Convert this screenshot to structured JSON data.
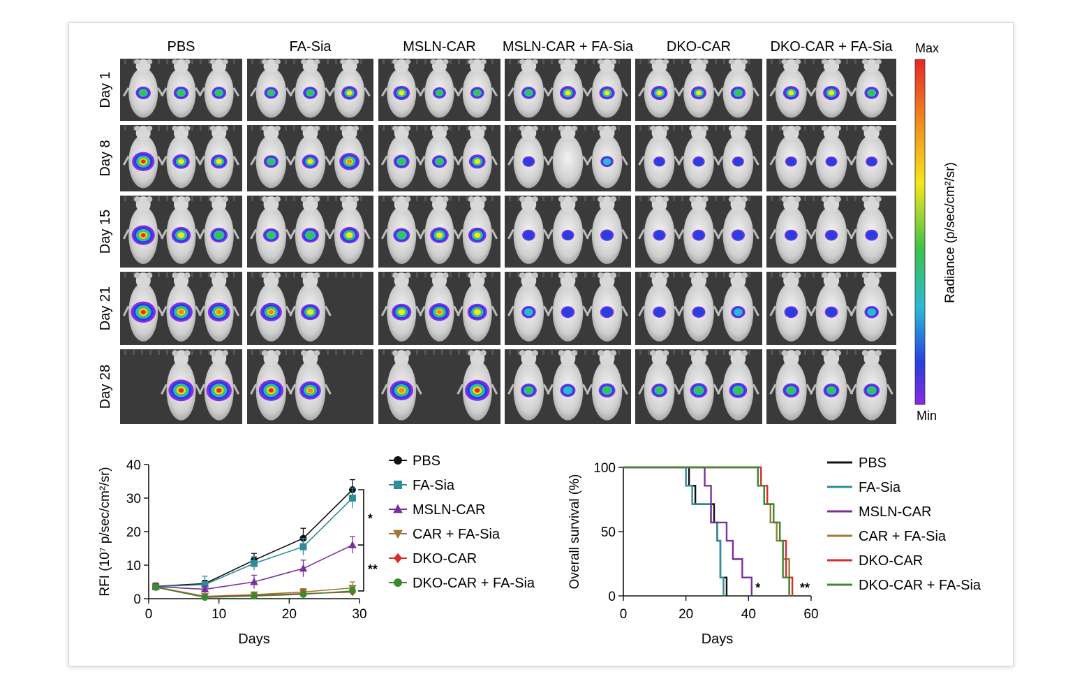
{
  "imaging_panel": {
    "groups": [
      "PBS",
      "FA-Sia",
      "MSLN-CAR",
      "MSLN-CAR + FA-Sia",
      "DKO-CAR",
      "DKO-CAR + FA-Sia"
    ],
    "days": [
      "Day 1",
      "Day 8",
      "Day 15",
      "Day 21",
      "Day 28"
    ],
    "colorbar": {
      "max_label": "Max",
      "min_label": "Min",
      "title": "Radiance (p/sec/cm²/sr)"
    },
    "mice_present": [
      [
        [
          1,
          1,
          1
        ],
        [
          1,
          1,
          1
        ],
        [
          1,
          1,
          1
        ],
        [
          1,
          1,
          1
        ],
        [
          1,
          1,
          1
        ],
        [
          1,
          1,
          1
        ]
      ],
      [
        [
          1,
          1,
          1
        ],
        [
          1,
          1,
          1
        ],
        [
          1,
          1,
          1
        ],
        [
          1,
          1,
          1
        ],
        [
          1,
          1,
          1
        ],
        [
          1,
          1,
          1
        ]
      ],
      [
        [
          1,
          1,
          1
        ],
        [
          1,
          1,
          1
        ],
        [
          1,
          1,
          1
        ],
        [
          1,
          1,
          1
        ],
        [
          1,
          1,
          1
        ],
        [
          1,
          1,
          1
        ]
      ],
      [
        [
          1,
          1,
          1
        ],
        [
          1,
          1,
          0
        ],
        [
          1,
          1,
          1
        ],
        [
          1,
          1,
          1
        ],
        [
          1,
          1,
          1
        ],
        [
          1,
          1,
          1
        ]
      ],
      [
        [
          0,
          1,
          1
        ],
        [
          1,
          1,
          0
        ],
        [
          1,
          0,
          1
        ],
        [
          1,
          1,
          1
        ],
        [
          1,
          1,
          1
        ],
        [
          1,
          1,
          1
        ]
      ]
    ],
    "signal_intensity": [
      [
        [
          0.45,
          0.45,
          0.4
        ],
        [
          0.35,
          0.4,
          0.55
        ],
        [
          0.6,
          0.3,
          0.35
        ],
        [
          0.4,
          0.55,
          0.5
        ],
        [
          0.6,
          0.5,
          0.45
        ],
        [
          0.55,
          0.6,
          0.4
        ]
      ],
      [
        [
          1.0,
          0.55,
          0.5
        ],
        [
          0.35,
          0.5,
          0.8
        ],
        [
          0.45,
          0.35,
          0.5
        ],
        [
          0.15,
          0.0,
          0.2
        ],
        [
          0.1,
          0.12,
          0.1
        ],
        [
          0.1,
          0.1,
          0.1
        ]
      ],
      [
        [
          0.9,
          0.6,
          0.45
        ],
        [
          0.35,
          0.45,
          0.6
        ],
        [
          0.4,
          0.55,
          0.5
        ],
        [
          0.12,
          0.08,
          0.15
        ],
        [
          0.1,
          0.12,
          0.15
        ],
        [
          0.12,
          0.1,
          0.12
        ]
      ],
      [
        [
          1.0,
          0.85,
          0.8
        ],
        [
          0.75,
          0.55,
          0
        ],
        [
          0.6,
          0.7,
          0.6
        ],
        [
          0.2,
          0.15,
          0.15
        ],
        [
          0.1,
          0.12,
          0.2
        ],
        [
          0.15,
          0.1,
          0.2
        ]
      ],
      [
        [
          0,
          1.0,
          1.0
        ],
        [
          0.95,
          0.7,
          0
        ],
        [
          0.85,
          0,
          0.95
        ],
        [
          0.3,
          0.25,
          0.35
        ],
        [
          0.3,
          0.4,
          0.45
        ],
        [
          0.35,
          0.3,
          0.3
        ]
      ]
    ]
  },
  "chart_data": [
    {
      "type": "line",
      "xlabel": "Days",
      "ylabel": "RFI (10⁷ p/sec/cm²/sr)",
      "xlim": [
        0,
        30
      ],
      "ylim": [
        0,
        40
      ],
      "xticks": [
        0,
        10,
        20,
        30
      ],
      "yticks": [
        0,
        10,
        20,
        30,
        40
      ],
      "legend_position": "right",
      "series": [
        {
          "name": "PBS",
          "x": [
            1,
            8,
            15,
            22,
            29
          ],
          "y": [
            3.7,
            4.5,
            11.5,
            18.0,
            32.5
          ],
          "err": [
            1.0,
            1.0,
            2.0,
            3.0,
            3.0
          ],
          "color": "#111111",
          "marker": "circle"
        },
        {
          "name": "FA-Sia",
          "x": [
            1,
            8,
            15,
            22,
            29
          ],
          "y": [
            3.6,
            4.2,
            10.5,
            15.5,
            30.0
          ],
          "err": [
            1.0,
            2.5,
            2.0,
            2.5,
            3.0
          ],
          "color": "#2f8c9a",
          "marker": "square"
        },
        {
          "name": "MSLN-CAR",
          "x": [
            1,
            8,
            15,
            22,
            29
          ],
          "y": [
            3.6,
            2.8,
            5.0,
            9.0,
            16.0
          ],
          "err": [
            1.0,
            1.0,
            2.0,
            2.5,
            2.5
          ],
          "color": "#7a2f9e",
          "marker": "triangle-up"
        },
        {
          "name": "CAR + FA-Sia",
          "x": [
            1,
            8,
            15,
            22,
            29
          ],
          "y": [
            3.5,
            0.7,
            1.2,
            2.0,
            3.2
          ],
          "err": [
            0.8,
            0.5,
            0.5,
            1.0,
            1.8
          ],
          "color": "#9b7a3a",
          "marker": "triangle-down"
        },
        {
          "name": "DKO-CAR",
          "x": [
            1,
            8,
            15,
            22,
            29
          ],
          "y": [
            3.5,
            0.5,
            1.0,
            1.5,
            2.0
          ],
          "err": [
            0.8,
            0.4,
            0.5,
            0.8,
            1.0
          ],
          "color": "#d62d2d",
          "marker": "diamond"
        },
        {
          "name": "DKO-CAR + FA-Sia",
          "x": [
            1,
            8,
            15,
            22,
            29
          ],
          "y": [
            3.4,
            0.4,
            0.8,
            1.3,
            2.3
          ],
          "err": [
            0.8,
            0.4,
            0.5,
            0.8,
            1.0
          ],
          "color": "#3a8a2e",
          "marker": "circle"
        }
      ],
      "annotations": [
        {
          "text": "*",
          "between": [
            "PBS",
            "MSLN-CAR"
          ]
        },
        {
          "text": "**",
          "between": [
            "MSLN-CAR",
            "DKO-CAR + FA-Sia"
          ]
        }
      ]
    },
    {
      "type": "line",
      "subtype": "step",
      "xlabel": "Days",
      "ylabel": "Overall survival (%)",
      "xlim": [
        0,
        60
      ],
      "ylim": [
        0,
        100
      ],
      "xticks": [
        0,
        20,
        40,
        60
      ],
      "yticks": [
        0,
        50,
        100
      ],
      "legend_position": "right",
      "series": [
        {
          "name": "PBS",
          "color": "#111111",
          "x": [
            0,
            21,
            23,
            29,
            30,
            31,
            33
          ],
          "y": [
            100,
            85.7,
            71.4,
            57.1,
            42.9,
            14.3,
            0
          ]
        },
        {
          "name": "FA-Sia",
          "color": "#2f8c9a",
          "x": [
            0,
            20,
            22,
            28,
            30,
            31,
            32
          ],
          "y": [
            100,
            85.7,
            71.4,
            57.1,
            42.9,
            14.3,
            0
          ]
        },
        {
          "name": "MSLN-CAR",
          "color": "#7a2f9e",
          "x": [
            0,
            26,
            28,
            33,
            35,
            38,
            41
          ],
          "y": [
            100,
            85.7,
            57.1,
            42.9,
            28.6,
            14.3,
            0
          ]
        },
        {
          "name": "CAR + FA-Sia",
          "color": "#9b7a3a",
          "x": [
            0,
            43,
            45,
            47,
            49,
            51,
            53
          ],
          "y": [
            100,
            85.7,
            71.4,
            57.1,
            42.9,
            28.6,
            0
          ]
        },
        {
          "name": "DKO-CAR",
          "color": "#d62d2d",
          "x": [
            0,
            44,
            46,
            48,
            50,
            52,
            54
          ],
          "y": [
            100,
            85.7,
            71.4,
            57.1,
            42.9,
            14.3,
            0
          ]
        },
        {
          "name": "DKO-CAR + FA-Sia",
          "color": "#3a8a2e",
          "x": [
            0,
            43,
            45,
            48,
            50,
            51,
            53
          ],
          "y": [
            100,
            85.7,
            71.4,
            57.1,
            42.9,
            14.3,
            0
          ]
        }
      ],
      "annotations": [
        {
          "text": "*",
          "x": 43,
          "y": 3
        },
        {
          "text": "**",
          "x": 58,
          "y": 3
        }
      ]
    }
  ]
}
